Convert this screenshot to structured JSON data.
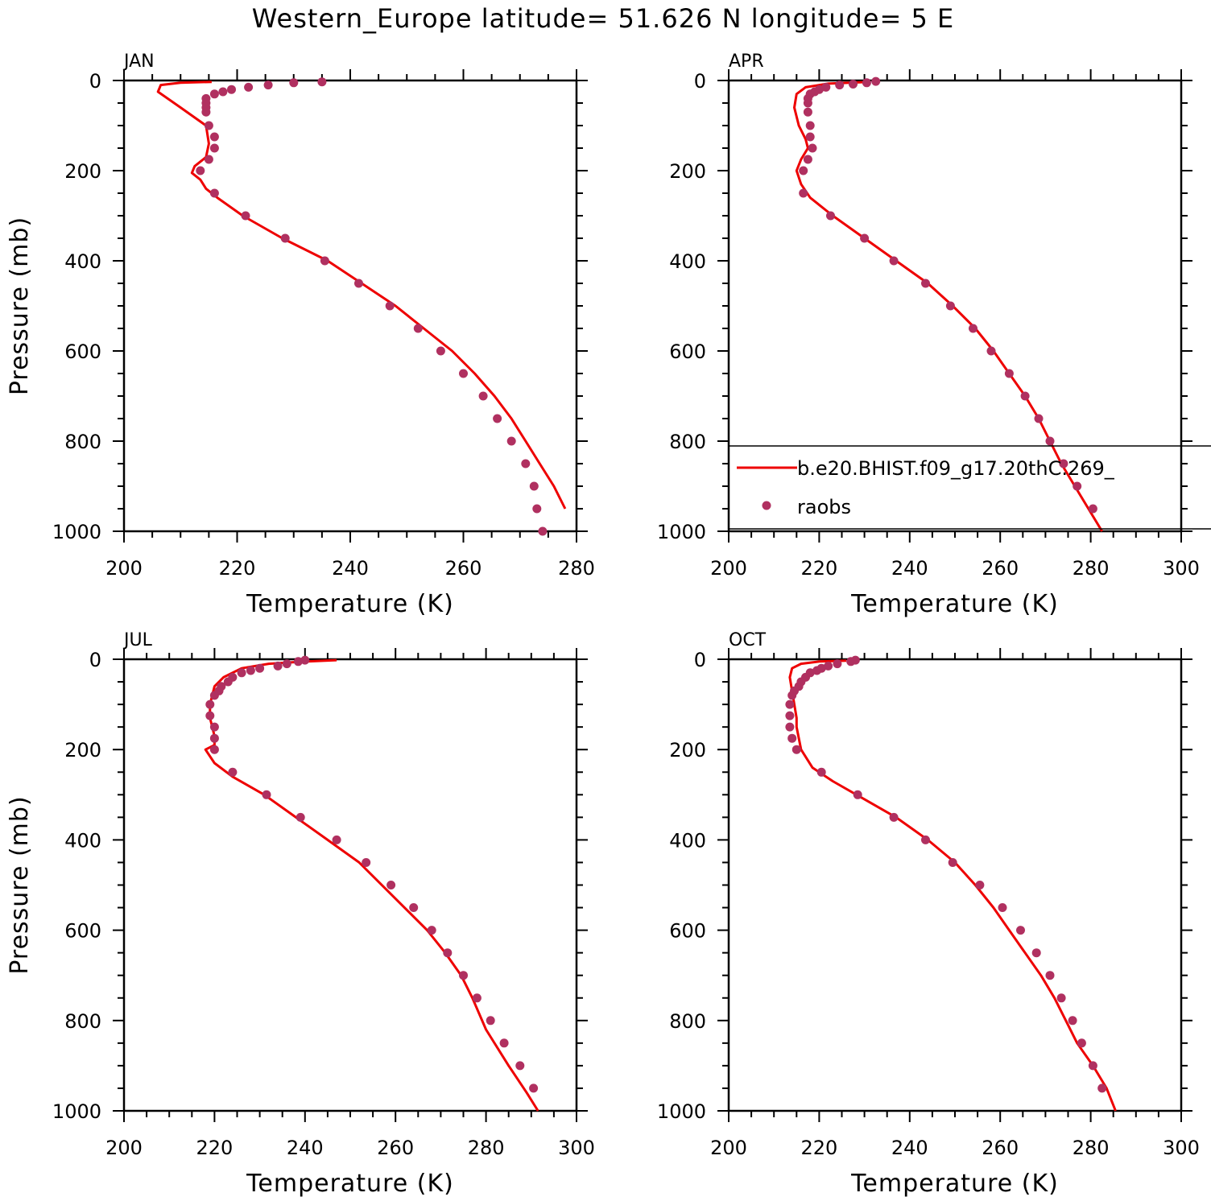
{
  "title": "Western_Europe  latitude= 51.626 N longitude= 5 E",
  "colors": {
    "model": "#ee0000",
    "obs": "#b03060",
    "axis": "#000000"
  },
  "legend": {
    "model": "b.e20.BHIST.f09_g17.20thC.269_",
    "obs": "raobs"
  },
  "chart_data": [
    {
      "type": "line",
      "panel": "JAN",
      "xlabel": "Temperature (K)",
      "ylabel": "Pressure (mb)",
      "xlim": [
        200,
        280
      ],
      "ylim": [
        1000,
        0
      ],
      "xticks": [
        200,
        220,
        240,
        260,
        280
      ],
      "yticks": [
        0,
        200,
        400,
        600,
        800,
        1000
      ],
      "series": [
        {
          "kind": "line",
          "x": [
            215.5,
            210,
            206.5,
            206,
            210,
            214.5,
            215,
            214.5,
            212.5,
            212,
            213.5,
            214.5,
            216.5,
            221,
            228,
            236,
            242,
            248,
            253,
            258,
            262,
            265.5,
            268.5,
            271,
            273.5,
            276,
            278
          ],
          "y": [
            3,
            5,
            10,
            25,
            60,
            100,
            140,
            170,
            190,
            205,
            220,
            240,
            260,
            300,
            350,
            400,
            450,
            500,
            550,
            600,
            650,
            700,
            750,
            800,
            850,
            900,
            950
          ]
        },
        {
          "kind": "scatter",
          "x": [
            235,
            230,
            225.5,
            222,
            219,
            217.5,
            216,
            214.5,
            214.5,
            214.5,
            214.5,
            215,
            216,
            216,
            215,
            213.5,
            216,
            221.5,
            228.5,
            235.5,
            241.5,
            247,
            252,
            256,
            260,
            263.5,
            266,
            268.5,
            271,
            272.5,
            273,
            274
          ],
          "y": [
            3,
            5,
            10,
            15,
            20,
            25,
            30,
            40,
            50,
            60,
            70,
            100,
            125,
            150,
            175,
            200,
            250,
            300,
            350,
            400,
            450,
            500,
            550,
            600,
            650,
            700,
            750,
            800,
            850,
            900,
            950,
            1000
          ]
        }
      ]
    },
    {
      "type": "line",
      "panel": "APR",
      "xlabel": "Temperature (K)",
      "ylabel": "",
      "xlim": [
        200,
        300
      ],
      "ylim": [
        1000,
        0
      ],
      "xticks": [
        200,
        220,
        240,
        260,
        280,
        300
      ],
      "yticks": [
        0,
        200,
        400,
        600,
        800,
        1000
      ],
      "series": [
        {
          "kind": "line",
          "x": [
            231,
            222,
            217,
            215,
            214.5,
            215.5,
            217,
            217.5,
            216,
            215,
            216,
            218,
            223,
            230,
            237,
            244,
            249.5,
            254.5,
            258.5,
            262,
            265.5,
            268.5,
            271,
            273.5,
            276.5,
            279.5,
            282.5
          ],
          "y": [
            3,
            7,
            15,
            30,
            60,
            100,
            130,
            150,
            175,
            200,
            230,
            260,
            300,
            350,
            400,
            450,
            500,
            550,
            600,
            650,
            700,
            750,
            800,
            850,
            900,
            950,
            1000
          ]
        },
        {
          "kind": "scatter",
          "x": [
            232.5,
            230.5,
            227.5,
            224.5,
            221.5,
            220,
            219,
            218,
            217.5,
            217.5,
            217.5,
            218,
            218,
            218.5,
            217.5,
            216.5,
            216.5,
            222.5,
            230,
            236.5,
            243.5,
            249,
            254,
            258,
            262,
            265.5,
            268.5,
            271,
            274,
            277,
            280.5
          ],
          "y": [
            2,
            5,
            8,
            10,
            15,
            20,
            25,
            30,
            40,
            50,
            70,
            100,
            125,
            150,
            175,
            200,
            250,
            300,
            350,
            400,
            450,
            500,
            550,
            600,
            650,
            700,
            750,
            800,
            850,
            900,
            950
          ]
        }
      ]
    },
    {
      "type": "line",
      "panel": "JUL",
      "xlabel": "Temperature (K)",
      "ylabel": "Pressure (mb)",
      "xlim": [
        200,
        300
      ],
      "ylim": [
        1000,
        0
      ],
      "xticks": [
        200,
        220,
        240,
        260,
        280,
        300
      ],
      "yticks": [
        0,
        200,
        400,
        600,
        800,
        1000
      ],
      "series": [
        {
          "kind": "line",
          "x": [
            247,
            240,
            232,
            226,
            222,
            220,
            219.5,
            219,
            219,
            219.5,
            220,
            220,
            218,
            220,
            224,
            231,
            238,
            245,
            252,
            257,
            262,
            267,
            271,
            274.5,
            277,
            280,
            285,
            289,
            291.5
          ],
          "y": [
            2,
            5,
            10,
            20,
            40,
            60,
            80,
            100,
            130,
            150,
            170,
            190,
            200,
            230,
            260,
            300,
            350,
            400,
            450,
            500,
            550,
            600,
            650,
            700,
            750,
            820,
            900,
            960,
            1000
          ]
        },
        {
          "kind": "scatter",
          "x": [
            240,
            238.5,
            236,
            234,
            230,
            228,
            226,
            224,
            223,
            221.5,
            221,
            220,
            219,
            219,
            220,
            220,
            220,
            224,
            231.5,
            239,
            247,
            253.5,
            259,
            264,
            268,
            271.5,
            275,
            278,
            281,
            284,
            287.5,
            290.5
          ],
          "y": [
            2,
            5,
            10,
            15,
            20,
            25,
            30,
            40,
            50,
            60,
            70,
            80,
            100,
            125,
            150,
            175,
            200,
            250,
            300,
            350,
            400,
            450,
            500,
            550,
            600,
            650,
            700,
            750,
            800,
            850,
            900,
            950
          ]
        }
      ]
    },
    {
      "type": "line",
      "panel": "OCT",
      "xlabel": "Temperature (K)",
      "ylabel": "",
      "xlim": [
        200,
        300
      ],
      "ylim": [
        1000,
        0
      ],
      "xticks": [
        200,
        220,
        240,
        260,
        280,
        300
      ],
      "yticks": [
        0,
        200,
        400,
        600,
        800,
        1000
      ],
      "series": [
        {
          "kind": "line",
          "x": [
            226,
            220,
            216,
            214,
            213.5,
            214,
            214.5,
            215,
            215,
            215.5,
            216,
            218.5,
            223,
            230,
            237,
            244,
            250,
            254.5,
            258.5,
            262,
            265.5,
            269,
            272,
            274.5,
            277,
            280.5,
            283.5,
            285.5
          ],
          "y": [
            3,
            5,
            10,
            20,
            40,
            70,
            100,
            130,
            150,
            175,
            200,
            240,
            270,
            310,
            350,
            400,
            450,
            500,
            550,
            600,
            650,
            700,
            750,
            800,
            850,
            900,
            950,
            1000
          ]
        },
        {
          "kind": "scatter",
          "x": [
            228,
            227,
            224,
            222,
            220.5,
            219.5,
            218,
            217,
            216,
            215.5,
            214.5,
            214,
            213.5,
            213.5,
            213.5,
            214,
            215,
            220.5,
            228.5,
            236.5,
            243.5,
            249.5,
            255.5,
            260.5,
            264.5,
            268,
            271,
            273.5,
            276,
            278,
            280.5,
            282.5
          ],
          "y": [
            2,
            5,
            10,
            15,
            20,
            25,
            30,
            40,
            50,
            60,
            70,
            80,
            100,
            125,
            150,
            175,
            200,
            250,
            300,
            350,
            400,
            450,
            500,
            550,
            600,
            650,
            700,
            750,
            800,
            850,
            900,
            950
          ]
        }
      ]
    }
  ]
}
